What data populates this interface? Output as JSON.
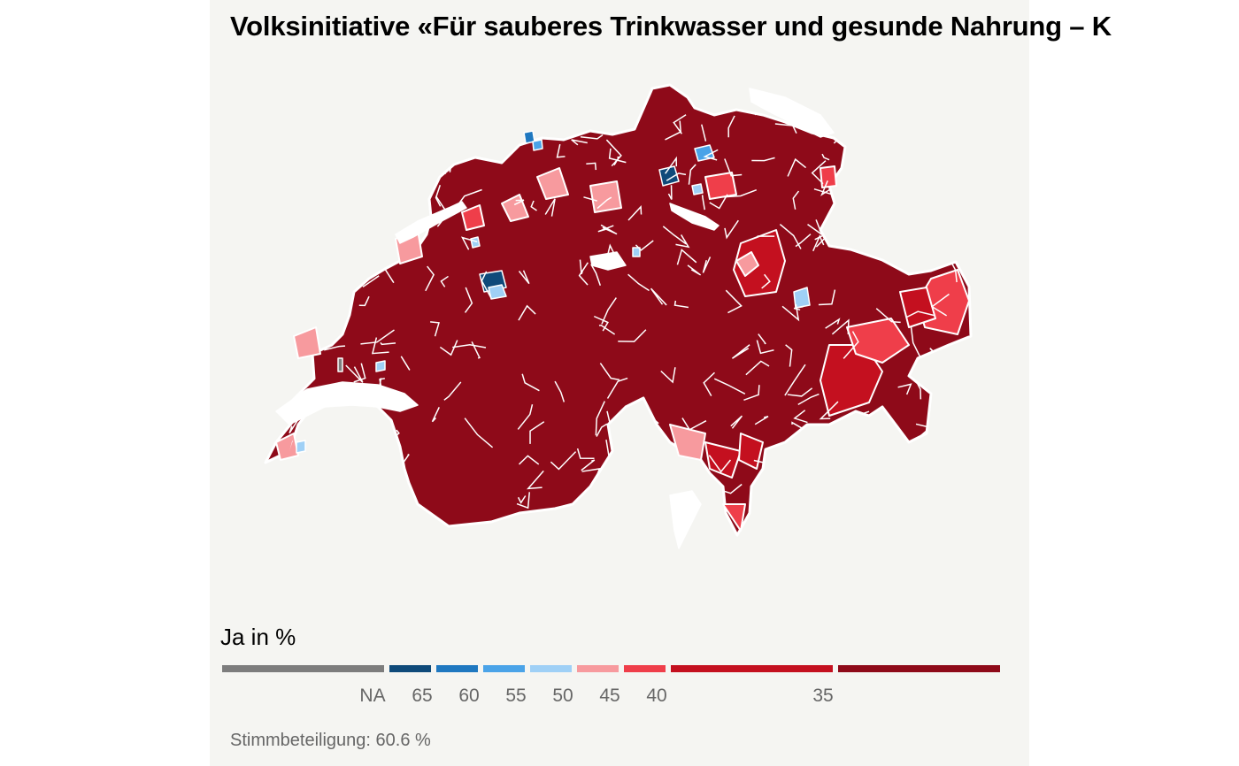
{
  "title": "Volksinitiative «Für sauberes Trinkwasser und gesunde Nahrung – K",
  "legend": {
    "title": "Ja in %",
    "na_label": "NA",
    "tick_labels": [
      "65",
      "60",
      "55",
      "50",
      "45",
      "40",
      "35"
    ],
    "colors": {
      "na": "#7d7d7d",
      "ge65": "#0f4a7a",
      "60_65": "#1f78c0",
      "55_60": "#4aa3e8",
      "50_55": "#9fd0f6",
      "45_50": "#f79a9e",
      "40_45": "#ef3e4a",
      "35_40": "#c4101f",
      "lt35": "#8e0a19"
    }
  },
  "footer": {
    "turnout": "Stimmbeteiligung: 60.6 %"
  },
  "map": {
    "dominant_class": "lt35",
    "lake_color": "#ffffff",
    "border_color": "#ffffff"
  }
}
